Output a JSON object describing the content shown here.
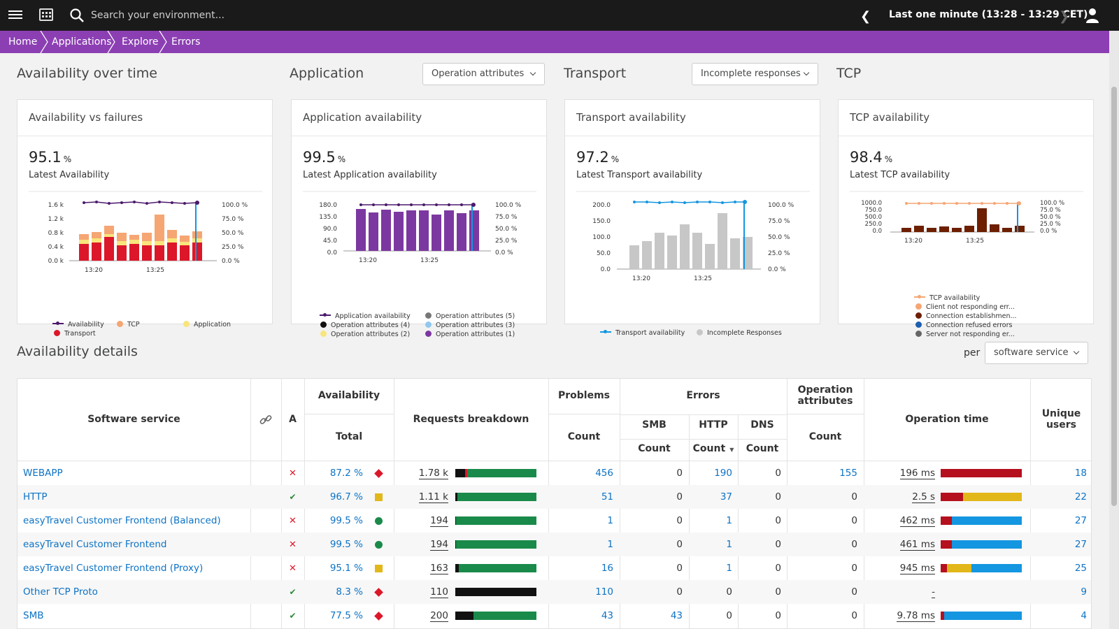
{
  "topbar": {
    "search_placeholder": "Search your environment...",
    "timeframe": "Last one minute (13:28 - 13:29 CET)"
  },
  "breadcrumbs": [
    "Home",
    "Applications",
    "Explore",
    "Errors"
  ],
  "sections": {
    "availability_over_time": "Availability over time",
    "application": "Application",
    "application_dropdown": "Operation attributes",
    "transport": "Transport",
    "transport_dropdown": "Incomplete responses",
    "tcp": "TCP"
  },
  "cards": [
    {
      "title": "Availability vs failures",
      "value": "95.1",
      "unit": "%",
      "label": "Latest Availability",
      "y_ticks": [
        "1.6 k",
        "1.2 k",
        "0.8 k",
        "0.4 k",
        "0.0 k"
      ],
      "y2_ticks": [
        "100.0 %",
        "75.0 %",
        "50.0 %",
        "25.0 %",
        "0.0 %"
      ],
      "x_ticks": [
        "13:20",
        "13:25"
      ],
      "legend": [
        "Availability",
        "TCP",
        "Application",
        "Transport"
      ]
    },
    {
      "title": "Application availability",
      "value": "99.5",
      "unit": "%",
      "label": "Latest Application availability",
      "y_ticks": [
        "180.0",
        "135.0",
        "90.0",
        "45.0",
        "0.0"
      ],
      "y2_ticks": [
        "100.0 %",
        "75.0 %",
        "50.0 %",
        "25.0 %",
        "0.0 %"
      ],
      "x_ticks": [
        "13:20",
        "13:25"
      ],
      "legend": [
        "Application availability",
        "Operation attributes (5)",
        "Operation attributes (4)",
        "Operation attributes (3)",
        "Operation attributes (2)",
        "Operation attributes (1)"
      ]
    },
    {
      "title": "Transport availability",
      "value": "97.2",
      "unit": "%",
      "label": "Latest Transport availability",
      "y_ticks": [
        "200.0",
        "150.0",
        "100.0",
        "50.0",
        "0.0"
      ],
      "y2_ticks": [
        "100.0 %",
        "75.0 %",
        "50.0 %",
        "25.0 %",
        "0.0 %"
      ],
      "x_ticks": [
        "13:20",
        "13:25"
      ],
      "legend": [
        "Transport availability",
        "Incomplete Responses"
      ]
    },
    {
      "title": "TCP availability",
      "value": "98.4",
      "unit": "%",
      "label": "Latest TCP availability",
      "y_ticks": [
        "1000.0",
        "750.0",
        "500.0",
        "250.0",
        "0.0"
      ],
      "y2_ticks": [
        "100.0 %",
        "75.0 %",
        "50.0 %",
        "25.0 %",
        "0.0 %"
      ],
      "x_ticks": [
        "13:20",
        "13:25"
      ],
      "legend": [
        "TCP availability",
        "Client not responding err...",
        "Connection establishmen...",
        "Connection refused errors",
        "Server not responding er..."
      ]
    }
  ],
  "details": {
    "title": "Availability details",
    "per_label": "per",
    "per_dropdown": "software service",
    "headers": {
      "software_service": "Software service",
      "a": "A",
      "availability": "Availability",
      "total": "Total",
      "requests_breakdown": "Requests breakdown",
      "problems": "Problems",
      "count": "Count",
      "errors": "Errors",
      "smb": "SMB",
      "http": "HTTP",
      "dns": "DNS",
      "operation_attributes_1": "Operation",
      "operation_attributes_2": "attributes",
      "operation_time": "Operation time",
      "unique_users_1": "Unique",
      "unique_users_2": "users"
    },
    "rows": [
      {
        "name": "WEBAPP",
        "status": "error",
        "availability": "87.2 %",
        "indicator": "diamond-red",
        "requests": "1.78 k",
        "req_bar": [
          0.12,
          0.03,
          0.85
        ],
        "problems": "456",
        "smb": "0",
        "smb_link": false,
        "http": "190",
        "dns": "0",
        "op_attr": "155",
        "op_link": true,
        "op_time": "196 ms",
        "time_bar": [
          1.0,
          0,
          0
        ],
        "users": "18"
      },
      {
        "name": "HTTP",
        "status": "ok",
        "availability": "96.7 %",
        "indicator": "square-yellow",
        "requests": "1.11 k",
        "req_bar": [
          0.03,
          0,
          0.97
        ],
        "problems": "51",
        "smb": "0",
        "smb_link": false,
        "http": "37",
        "dns": "0",
        "op_attr": "0",
        "op_link": false,
        "op_time": "2.5 s",
        "time_bar": [
          0.28,
          0.72,
          0
        ],
        "users": "22"
      },
      {
        "name": "easyTravel Customer Frontend (Balanced)",
        "status": "error",
        "availability": "99.5 %",
        "indicator": "circle-green",
        "requests": "194",
        "req_bar": [
          0.01,
          0,
          0.99
        ],
        "problems": "1",
        "smb": "0",
        "smb_link": false,
        "http": "1",
        "dns": "0",
        "op_attr": "0",
        "op_link": false,
        "op_time": "462 ms",
        "time_bar": [
          0.14,
          0,
          0.86
        ],
        "users": "27"
      },
      {
        "name": "easyTravel Customer Frontend",
        "status": "error",
        "availability": "99.5 %",
        "indicator": "circle-green",
        "requests": "194",
        "req_bar": [
          0.01,
          0,
          0.99
        ],
        "problems": "1",
        "smb": "0",
        "smb_link": false,
        "http": "1",
        "dns": "0",
        "op_attr": "0",
        "op_link": false,
        "op_time": "461 ms",
        "time_bar": [
          0.14,
          0,
          0.86
        ],
        "users": "27"
      },
      {
        "name": "easyTravel Customer Frontend (Proxy)",
        "status": "error",
        "availability": "95.1 %",
        "indicator": "square-yellow",
        "requests": "163",
        "req_bar": [
          0.04,
          0,
          0.96
        ],
        "problems": "16",
        "smb": "0",
        "smb_link": false,
        "http": "1",
        "dns": "0",
        "op_attr": "0",
        "op_link": false,
        "op_time": "945 ms",
        "time_bar": [
          0.08,
          0.3,
          0.62
        ],
        "users": "25"
      },
      {
        "name": "Other TCP Proto",
        "status": "ok",
        "availability": "8.3 %",
        "indicator": "diamond-red",
        "requests": "110",
        "req_bar": [
          1.0,
          0,
          0
        ],
        "problems": "110",
        "smb": "0",
        "smb_link": false,
        "http": "0",
        "dns": "0",
        "op_attr": "0",
        "op_link": false,
        "op_time": "-",
        "time_bar": [
          0,
          0,
          0
        ],
        "users": "9"
      },
      {
        "name": "SMB",
        "status": "ok",
        "availability": "77.5 %",
        "indicator": "diamond-red",
        "requests": "200",
        "req_bar": [
          0.22,
          0,
          0.78
        ],
        "problems": "43",
        "smb": "43",
        "smb_link": true,
        "http": "0",
        "dns": "0",
        "op_attr": "0",
        "op_link": false,
        "op_time": "9.78 ms",
        "time_bar": [
          0.04,
          0,
          0.96
        ],
        "users": "4"
      }
    ]
  },
  "colors": {
    "accent": "#8c3fb3",
    "link": "#0d73c5",
    "red": "#dc172a",
    "orange": "#f5a673",
    "yellow": "#f8e57c",
    "purple": "#7c38a1",
    "green": "#1a8a4a",
    "blue": "#1496e0",
    "gold": "#e2b719",
    "darkred": "#b5101e",
    "grey_bar": "#c7c7c7",
    "brown": "#6d1f00"
  }
}
